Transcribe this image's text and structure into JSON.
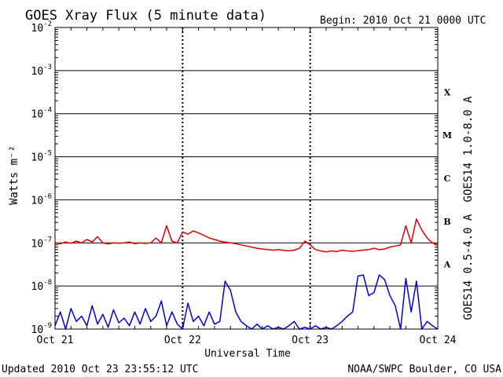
{
  "chart_data": {
    "type": "line",
    "title": "GOES Xray Flux (5 minute data)",
    "begin_label": "Begin:  2010 Oct 21 0000 UTC",
    "ylabel": "Watts m⁻²",
    "xlabel": "Universal Time",
    "yscale": "log",
    "ylim": [
      1e-09,
      0.01
    ],
    "xlim": [
      0,
      72
    ],
    "x_unit": "hours since 2010 Oct 21 0000 UTC",
    "grid": true,
    "y_ticks": [
      {
        "exp": -9,
        "label": "10",
        "sup": "-9"
      },
      {
        "exp": -8,
        "label": "10",
        "sup": "-8"
      },
      {
        "exp": -7,
        "label": "10",
        "sup": "-7"
      },
      {
        "exp": -6,
        "label": "10",
        "sup": "-6"
      },
      {
        "exp": -5,
        "label": "10",
        "sup": "-5"
      },
      {
        "exp": -4,
        "label": "10",
        "sup": "-4"
      },
      {
        "exp": -3,
        "label": "10",
        "sup": "-3"
      },
      {
        "exp": -2,
        "label": "10",
        "sup": "-2"
      }
    ],
    "x_ticks": [
      {
        "x": 0,
        "label": "Oct 21"
      },
      {
        "x": 24,
        "label": "Oct 22"
      },
      {
        "x": 48,
        "label": "Oct 23"
      },
      {
        "x": 72,
        "label": "Oct 24"
      }
    ],
    "flare_classes": [
      {
        "label": "X",
        "exp": -4
      },
      {
        "label": "M",
        "exp": -5
      },
      {
        "label": "C",
        "exp": -6
      },
      {
        "label": "B",
        "exp": -7
      },
      {
        "label": "A",
        "exp": -8
      }
    ],
    "series": [
      {
        "name": "GOES14 1.0-8.0 A",
        "color": "#e00000",
        "x": [
          0,
          1,
          2,
          3,
          4,
          5,
          6,
          7,
          8,
          9,
          10,
          11,
          12,
          13,
          14,
          15,
          16,
          17,
          18,
          19,
          20,
          21,
          22,
          23,
          24,
          25,
          26,
          27,
          28,
          29,
          30,
          31,
          32,
          33,
          34,
          35,
          36,
          37,
          38,
          39,
          40,
          41,
          42,
          43,
          44,
          45,
          46,
          47,
          48,
          49,
          50,
          51,
          52,
          53,
          54,
          55,
          56,
          57,
          58,
          59,
          60,
          61,
          62,
          63,
          64,
          65,
          66,
          67,
          68,
          69,
          70,
          71,
          72
        ],
        "values": [
          1e-07,
          9.5e-08,
          1.05e-07,
          9.8e-08,
          1.1e-07,
          1e-07,
          1.2e-07,
          1.05e-07,
          1.4e-07,
          1e-07,
          9.5e-08,
          1e-07,
          9.8e-08,
          1e-07,
          1.05e-07,
          9.6e-08,
          1e-07,
          9.7e-08,
          1e-07,
          1.3e-07,
          1e-07,
          2.5e-07,
          1.1e-07,
          1e-07,
          1.8e-07,
          1.6e-07,
          1.9e-07,
          1.7e-07,
          1.5e-07,
          1.3e-07,
          1.2e-07,
          1.1e-07,
          1.05e-07,
          1e-07,
          9.6e-08,
          9e-08,
          8.5e-08,
          8e-08,
          7.5e-08,
          7.2e-08,
          7e-08,
          6.8e-08,
          7e-08,
          6.7e-08,
          6.5e-08,
          6.8e-08,
          7.5e-08,
          1.1e-07,
          9e-08,
          7e-08,
          6.5e-08,
          6.2e-08,
          6.5e-08,
          6.3e-08,
          6.8e-08,
          6.5e-08,
          6.4e-08,
          6.6e-08,
          6.8e-08,
          7e-08,
          7.5e-08,
          7e-08,
          7.2e-08,
          8e-08,
          8.5e-08,
          9e-08,
          2.5e-07,
          1e-07,
          3.6e-07,
          2e-07,
          1.3e-07,
          1e-07,
          9e-08
        ]
      },
      {
        "name": "GOES14 0.5-4.0 A",
        "color": "#0000e0",
        "x": [
          0,
          1,
          2,
          3,
          4,
          5,
          6,
          7,
          8,
          9,
          10,
          11,
          12,
          13,
          14,
          15,
          16,
          17,
          18,
          19,
          20,
          21,
          22,
          23,
          24,
          25,
          26,
          27,
          28,
          29,
          30,
          31,
          32,
          33,
          34,
          35,
          36,
          37,
          38,
          39,
          40,
          41,
          42,
          43,
          44,
          45,
          46,
          47,
          48,
          49,
          50,
          51,
          52,
          53,
          54,
          55,
          56,
          57,
          58,
          59,
          60,
          61,
          62,
          63,
          64,
          65,
          66,
          67,
          68,
          69,
          70,
          71,
          72
        ],
        "values": [
          1.2e-09,
          2.5e-09,
          1e-09,
          3e-09,
          1.5e-09,
          2e-09,
          1.2e-09,
          3.5e-09,
          1.3e-09,
          2.2e-09,
          1.1e-09,
          2.8e-09,
          1.4e-09,
          1.8e-09,
          1.2e-09,
          2.5e-09,
          1.3e-09,
          3e-09,
          1.5e-09,
          2e-09,
          4.5e-09,
          1.2e-09,
          2.5e-09,
          1.3e-09,
          1e-09,
          4e-09,
          1.5e-09,
          2e-09,
          1.2e-09,
          2.5e-09,
          1.3e-09,
          1.5e-09,
          1.3e-08,
          8e-09,
          2.5e-09,
          1.5e-09,
          1.2e-09,
          1e-09,
          1.3e-09,
          1e-09,
          1.2e-09,
          1e-09,
          1.1e-09,
          1e-09,
          1.2e-09,
          1.5e-09,
          1e-09,
          1.1e-09,
          1e-09,
          1.2e-09,
          1e-09,
          1.1e-09,
          1e-09,
          1.2e-09,
          1.5e-09,
          2e-09,
          2.5e-09,
          1.7e-08,
          1.8e-08,
          6e-09,
          7e-09,
          1.8e-08,
          1.4e-08,
          6e-09,
          3.5e-09,
          1e-09,
          1.5e-08,
          2.5e-09,
          1.3e-08,
          1e-09,
          1.5e-09,
          1.2e-09,
          1e-09
        ]
      }
    ]
  },
  "footer": {
    "updated": "Updated 2010 Oct 23 23:55:12 UTC",
    "credit": "NOAA/SWPC Boulder, CO USA"
  }
}
